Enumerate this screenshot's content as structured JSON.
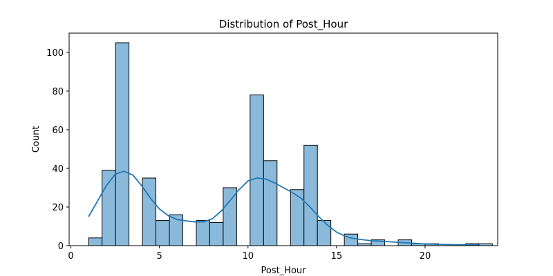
{
  "chart_data": {
    "type": "bar",
    "title": "Distribution of Post_Hour",
    "xlabel": "Post_Hour",
    "ylabel": "Count",
    "xlim": [
      -0.1,
      24.1
    ],
    "ylim": [
      0,
      110
    ],
    "x_ticks": [
      0,
      5,
      10,
      15,
      20
    ],
    "y_ticks": [
      0,
      20,
      40,
      60,
      80,
      100
    ],
    "bins": [
      {
        "start": 1.0,
        "end": 1.76,
        "count": 4
      },
      {
        "start": 1.76,
        "end": 2.52,
        "count": 39
      },
      {
        "start": 2.52,
        "end": 3.28,
        "count": 105
      },
      {
        "start": 3.28,
        "end": 4.04,
        "count": 0
      },
      {
        "start": 4.04,
        "end": 4.8,
        "count": 35
      },
      {
        "start": 4.8,
        "end": 5.56,
        "count": 13
      },
      {
        "start": 5.56,
        "end": 6.32,
        "count": 16
      },
      {
        "start": 6.32,
        "end": 7.08,
        "count": 0
      },
      {
        "start": 7.08,
        "end": 7.84,
        "count": 13
      },
      {
        "start": 7.84,
        "end": 8.6,
        "count": 12
      },
      {
        "start": 8.6,
        "end": 9.36,
        "count": 30
      },
      {
        "start": 9.36,
        "end": 10.12,
        "count": 0
      },
      {
        "start": 10.12,
        "end": 10.88,
        "count": 78
      },
      {
        "start": 10.88,
        "end": 11.64,
        "count": 44
      },
      {
        "start": 11.64,
        "end": 12.4,
        "count": 0
      },
      {
        "start": 12.4,
        "end": 13.16,
        "count": 29
      },
      {
        "start": 13.16,
        "end": 13.92,
        "count": 52
      },
      {
        "start": 13.92,
        "end": 14.68,
        "count": 13
      },
      {
        "start": 14.68,
        "end": 15.44,
        "count": 0
      },
      {
        "start": 15.44,
        "end": 16.2,
        "count": 6
      },
      {
        "start": 16.2,
        "end": 16.96,
        "count": 1
      },
      {
        "start": 16.96,
        "end": 17.72,
        "count": 3
      },
      {
        "start": 17.72,
        "end": 18.48,
        "count": 0
      },
      {
        "start": 18.48,
        "end": 19.24,
        "count": 3
      },
      {
        "start": 19.24,
        "end": 20.0,
        "count": 1
      },
      {
        "start": 20.0,
        "end": 20.76,
        "count": 1
      },
      {
        "start": 20.76,
        "end": 21.52,
        "count": 0
      },
      {
        "start": 21.52,
        "end": 22.28,
        "count": 0
      },
      {
        "start": 22.28,
        "end": 23.04,
        "count": 1
      },
      {
        "start": 23.04,
        "end": 23.8,
        "count": 1
      }
    ],
    "kde": {
      "x": [
        1.0,
        1.5,
        2.0,
        2.5,
        3.0,
        3.5,
        4.0,
        4.5,
        5.0,
        5.5,
        6.0,
        6.5,
        7.0,
        7.5,
        8.0,
        8.5,
        9.0,
        9.5,
        10.0,
        10.5,
        11.0,
        11.5,
        12.0,
        12.5,
        13.0,
        13.5,
        14.0,
        14.5,
        15.0,
        15.5,
        16.0,
        17.0,
        18.0,
        19.0,
        20.0,
        21.0,
        22.0,
        23.0
      ],
      "y": [
        15,
        23,
        31,
        37,
        38.5,
        36.5,
        31,
        24.5,
        19,
        15.5,
        13.5,
        12.8,
        12.3,
        12.3,
        14,
        18,
        23.5,
        29,
        33.5,
        35,
        34.5,
        32.5,
        30,
        27.5,
        24.5,
        20,
        15,
        10.5,
        7,
        4.8,
        3.6,
        2.5,
        2.0,
        1.4,
        0.9,
        0.6,
        0.5,
        0.5
      ]
    },
    "bar_fill": "#8bb9da",
    "bar_edge": "#000000",
    "kde_color": "#1f77b4",
    "grid": false,
    "legend": "none"
  }
}
